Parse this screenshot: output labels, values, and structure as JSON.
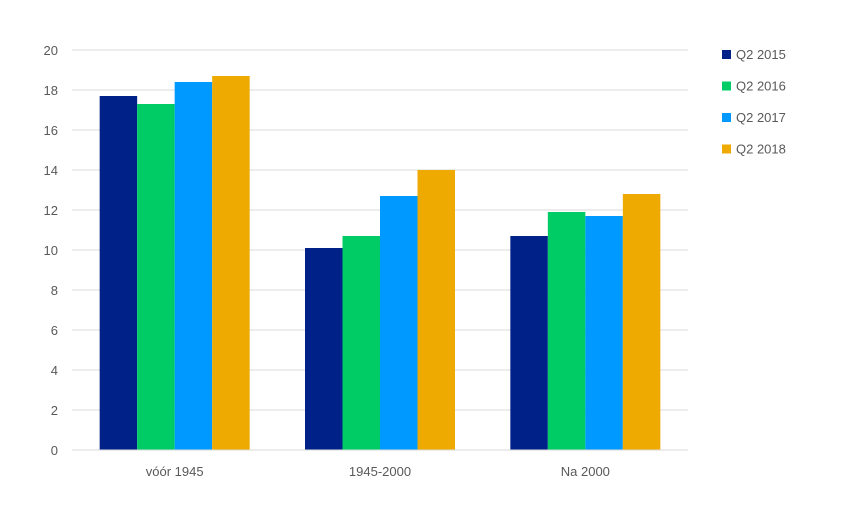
{
  "chart_data": {
    "type": "bar",
    "title": "",
    "xlabel": "",
    "ylabel": "",
    "categories": [
      "vóór 1945",
      "1945-2000",
      "Na 2000"
    ],
    "series": [
      {
        "name": "Q2 2015",
        "color": "#002288",
        "values": [
          17.7,
          10.1,
          10.7
        ]
      },
      {
        "name": "Q2 2016",
        "color": "#00CC66",
        "values": [
          17.3,
          10.7,
          11.9
        ]
      },
      {
        "name": "Q2 2017",
        "color": "#0099FF",
        "values": [
          18.4,
          12.7,
          11.7
        ]
      },
      {
        "name": "Q2 2018",
        "color": "#EEAA00",
        "values": [
          18.7,
          14.0,
          12.8
        ]
      }
    ],
    "ylim": [
      0,
      20
    ],
    "yticks": [
      "0",
      "2",
      "4",
      "6",
      "8",
      "10",
      "12",
      "14",
      "16",
      "18",
      "20"
    ],
    "grid": true,
    "legend_position": "right"
  }
}
